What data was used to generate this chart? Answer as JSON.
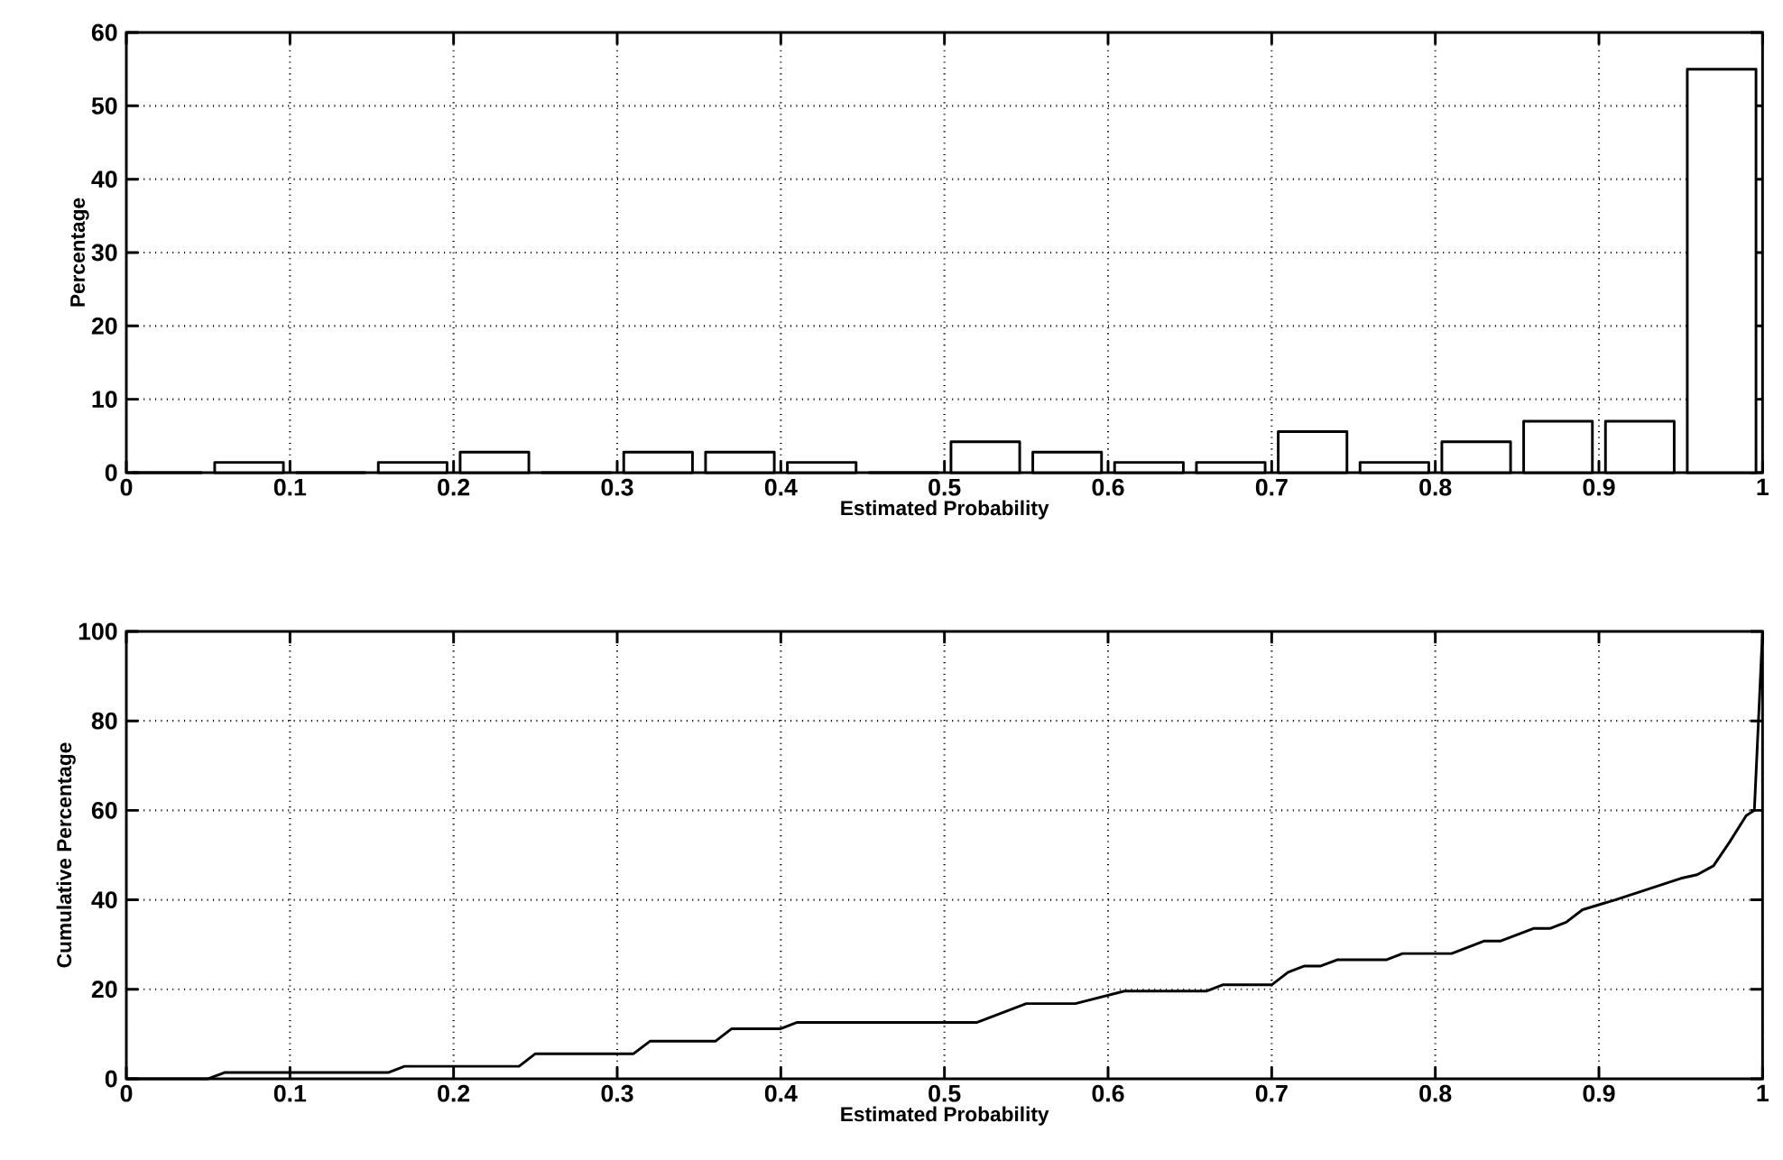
{
  "chart_data": [
    {
      "type": "histogram",
      "xlabel": "Estimated Probability",
      "ylabel": "Percentage",
      "bins": [
        0,
        0.05,
        0.1,
        0.15,
        0.2,
        0.25,
        0.3,
        0.35,
        0.4,
        0.45,
        0.5,
        0.55,
        0.6,
        0.65,
        0.7,
        0.75,
        0.8,
        0.85,
        0.9,
        0.95,
        1
      ],
      "values": [
        0,
        1.4,
        0,
        1.4,
        2.8,
        0,
        2.8,
        2.8,
        1.4,
        0,
        4.2,
        2.8,
        1.4,
        1.4,
        5.6,
        1.4,
        4.2,
        7,
        7,
        55
      ],
      "color": "#000000",
      "xlim": [
        0,
        1
      ],
      "ylim": [
        0,
        60
      ],
      "xticks": [
        0,
        0.1,
        0.2,
        0.3,
        0.4,
        0.5,
        0.6,
        0.7,
        0.8,
        0.9,
        1
      ],
      "yticks": [
        0,
        10,
        20,
        30,
        40,
        50,
        60
      ],
      "grid": true
    },
    {
      "type": "line",
      "xlabel": "Estimated Probability",
      "ylabel": "Cumulative Percentage",
      "x": [
        0,
        0.05,
        0.06,
        0.16,
        0.17,
        0.24,
        0.25,
        0.31,
        0.32,
        0.36,
        0.37,
        0.4,
        0.41,
        0.52,
        0.55,
        0.58,
        0.61,
        0.66,
        0.67,
        0.7,
        0.71,
        0.72,
        0.73,
        0.74,
        0.77,
        0.78,
        0.81,
        0.83,
        0.84,
        0.86,
        0.87,
        0.88,
        0.89,
        0.91,
        0.95,
        0.96,
        0.97,
        0.98,
        0.99,
        0.995,
        1
      ],
      "values": [
        0,
        0,
        1.4,
        1.4,
        2.8,
        2.8,
        5.6,
        5.6,
        8.4,
        8.4,
        11.2,
        11.2,
        12.6,
        12.6,
        16.8,
        16.8,
        19.6,
        19.6,
        21,
        21,
        23.8,
        25.2,
        25.2,
        26.6,
        26.6,
        28,
        28,
        30.8,
        30.8,
        33.6,
        33.6,
        35,
        37.8,
        40,
        44.8,
        45.6,
        47.6,
        53,
        58.8,
        60,
        100
      ],
      "color": "#000000",
      "xlim": [
        0,
        1
      ],
      "ylim": [
        0,
        100
      ],
      "xticks": [
        0,
        0.1,
        0.2,
        0.3,
        0.4,
        0.5,
        0.6,
        0.7,
        0.8,
        0.9,
        1
      ],
      "yticks": [
        0,
        20,
        40,
        60,
        80,
        100
      ],
      "grid": true
    }
  ]
}
